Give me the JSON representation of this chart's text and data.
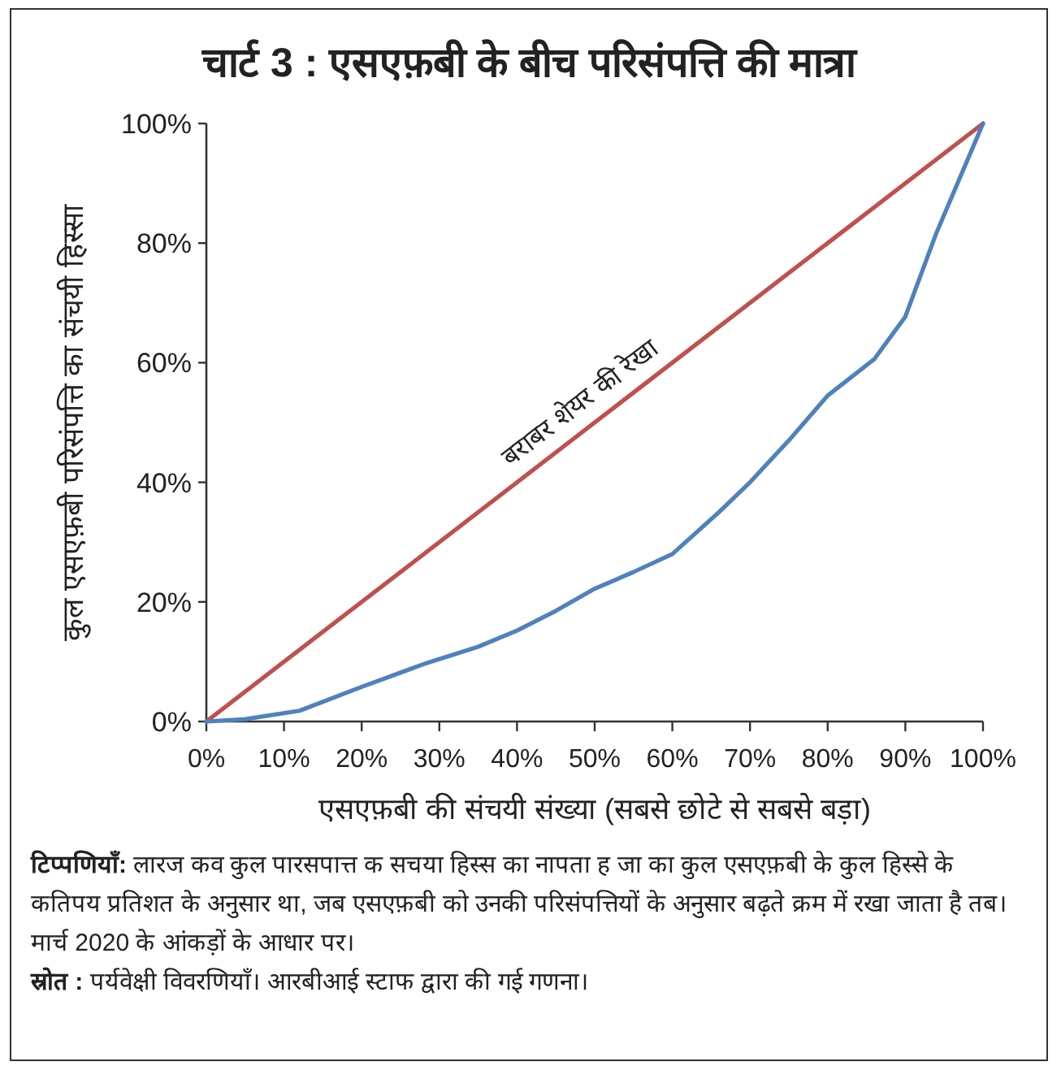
{
  "chart_data": {
    "type": "line",
    "title": "चार्ट 3 : एसएफ़बी के बीच परिसंपत्ति की मात्रा",
    "xlabel": "एसएफ़बी की संचयी संख्या (सबसे छोटे से सबसे बड़ा)",
    "ylabel": "कुल एसएफ़बी परिसंपत्ति का संचयी हिस्सा",
    "xlim": [
      0,
      100
    ],
    "ylim": [
      0,
      100
    ],
    "xticks": [
      {
        "value": 0,
        "label": "0%"
      },
      {
        "value": 10,
        "label": "10%"
      },
      {
        "value": 20,
        "label": "20%"
      },
      {
        "value": 30,
        "label": "30%"
      },
      {
        "value": 40,
        "label": "40%"
      },
      {
        "value": 50,
        "label": "50%"
      },
      {
        "value": 60,
        "label": "60%"
      },
      {
        "value": 70,
        "label": "70%"
      },
      {
        "value": 80,
        "label": "80%"
      },
      {
        "value": 90,
        "label": "90%"
      },
      {
        "value": 100,
        "label": "100%"
      }
    ],
    "yticks": [
      {
        "value": 0,
        "label": "0%"
      },
      {
        "value": 20,
        "label": "20%"
      },
      {
        "value": 40,
        "label": "40%"
      },
      {
        "value": 60,
        "label": "60%"
      },
      {
        "value": 80,
        "label": "80%"
      },
      {
        "value": 100,
        "label": "100%"
      }
    ],
    "series": [
      {
        "name": "बराबर शेयर की रेखा",
        "color": "#c0504d",
        "x": [
          0,
          100
        ],
        "values": [
          0,
          100
        ]
      },
      {
        "color": "#4f81bd",
        "x": [
          0,
          5,
          12,
          20,
          28,
          35,
          40,
          45,
          50,
          55,
          60,
          66,
          70,
          75,
          80,
          86,
          90,
          94,
          100
        ],
        "values": [
          0,
          0.4,
          1.8,
          5.8,
          9.6,
          12.5,
          15.2,
          18.5,
          22.2,
          25,
          28,
          35,
          40,
          47,
          54.5,
          60.6,
          67.7,
          81.7,
          100
        ]
      }
    ],
    "annotations": [
      "**टिप्पणियाँ:** लारज कव कुल पारसपात्त क सचया हिस्स का नापता ह जा का कुल एसएफ़बी के कुल हिस्से के कतिपय प्रतिशत के अनुसार था, जब एसएफ़बी को उनकी परिसंपत्तियों के अनुसार बढ़ते क्रम में रखा जाता है तब।",
      "मार्च 2020 के आंकड़ों के आधार पर।",
      "**स्रोत :** पर्यवेक्षी विवरणियाँ। आरबीआई स्टाफ द्वारा की गई गणना।"
    ]
  }
}
